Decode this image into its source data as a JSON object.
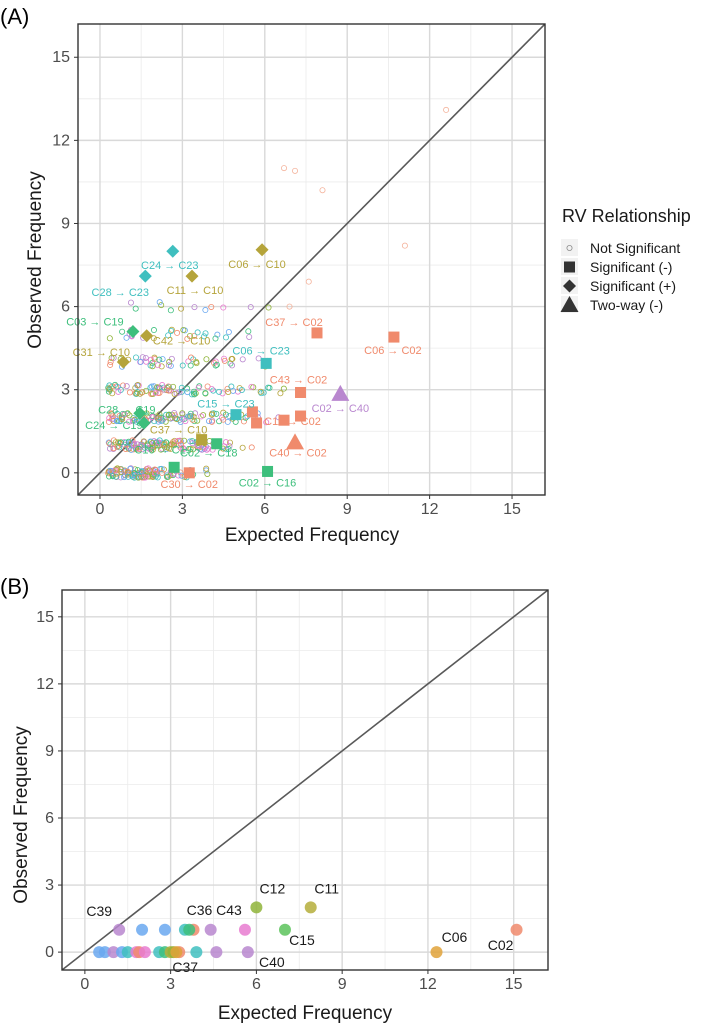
{
  "chart_data": [
    {
      "panel": "(A)",
      "type": "scatter",
      "xlabel": "Expected Frequency",
      "ylabel": "Observed Frequency",
      "xlim": [
        -0.8,
        16.2
      ],
      "ylim": [
        -0.8,
        16.2
      ],
      "xticks": [
        0,
        3,
        6,
        9,
        12,
        15
      ],
      "yticks": [
        0,
        3,
        6,
        9,
        12,
        15
      ],
      "grid": true,
      "reference_line": "y = x",
      "legend": {
        "title": "RV Relationship",
        "placement": "right",
        "entries": [
          {
            "label": "Not Significant",
            "shape": "circle-open"
          },
          {
            "label": "Significant (-)",
            "shape": "square"
          },
          {
            "label": "Significant (+)",
            "shape": "diamond"
          },
          {
            "label": "Two-way (-)",
            "shape": "triangle"
          }
        ]
      },
      "colors": {
        "C02": "#f08a6c",
        "C10": "#b5a43b",
        "C16": "#3dbf7c",
        "C18": "#3dbf7c",
        "C19": "#3dbf7c",
        "C23": "#3fbfbf",
        "C40": "#b987cf"
      },
      "significant_points": [
        {
          "label": "C24 → C23",
          "x": 2.65,
          "y": 8.0,
          "shape": "diamond",
          "group": "C23"
        },
        {
          "label": "C28 → C23",
          "x": 1.65,
          "y": 7.1,
          "shape": "diamond",
          "group": "C23"
        },
        {
          "label": "C06 → C10",
          "x": 5.9,
          "y": 8.05,
          "shape": "diamond",
          "group": "C10"
        },
        {
          "label": "C11 → C10",
          "x": 3.35,
          "y": 7.1,
          "shape": "diamond",
          "group": "C10"
        },
        {
          "label": "C03 → C19",
          "x": 1.2,
          "y": 5.1,
          "shape": "diamond",
          "group": "C19"
        },
        {
          "label": "C42 → C10",
          "x": 1.7,
          "y": 4.95,
          "shape": "diamond",
          "group": "C10"
        },
        {
          "label": "C31 → C10",
          "x": 0.85,
          "y": 4.0,
          "shape": "diamond",
          "group": "C10"
        },
        {
          "label": "C37 → C02",
          "x": 7.9,
          "y": 5.05,
          "shape": "square",
          "group": "C02"
        },
        {
          "label": "C06 → C02",
          "x": 10.7,
          "y": 4.9,
          "shape": "square",
          "group": "C02"
        },
        {
          "label": "C06 → C23",
          "x": 6.05,
          "y": 3.95,
          "shape": "square",
          "group": "C23"
        },
        {
          "label": "C43 → C02",
          "x": 7.3,
          "y": 2.9,
          "shape": "square",
          "group": "C02"
        },
        {
          "label": "C02 → C40",
          "x": 8.75,
          "y": 2.85,
          "shape": "triangle",
          "group": "C40"
        },
        {
          "label": "C28 → C19",
          "x": 1.45,
          "y": 2.15,
          "shape": "diamond",
          "group": "C19"
        },
        {
          "label": "C15 → C23",
          "x": 4.95,
          "y": 2.1,
          "shape": "square",
          "group": "C23"
        },
        {
          "label": "C24 → C19",
          "x": 1.6,
          "y": 1.8,
          "shape": "diamond",
          "group": "C19"
        },
        {
          "label": "C37 → C10",
          "x": 3.7,
          "y": 1.2,
          "shape": "square",
          "group": "C10"
        },
        {
          "label": "C11 → C02",
          "x": 7.3,
          "y": 2.05,
          "shape": "square",
          "group": "C02"
        },
        {
          "label": "C16 → C19",
          "x": 2.7,
          "y": 0.2,
          "shape": "square",
          "group": "C19"
        },
        {
          "label": "C02 → C18",
          "x": 4.25,
          "y": 1.05,
          "shape": "square",
          "group": "C18"
        },
        {
          "label": "C40 → C02",
          "x": 7.1,
          "y": 1.1,
          "shape": "triangle",
          "group": "C02"
        },
        {
          "label": "C30 → C02",
          "x": 3.25,
          "y": 0.0,
          "shape": "square",
          "group": "C02"
        },
        {
          "label": "C02 → C16",
          "x": 6.1,
          "y": 0.05,
          "shape": "square",
          "group": "C16"
        }
      ],
      "unlabeled_significant_points": [
        {
          "x": 5.55,
          "y": 2.2,
          "shape": "square",
          "group": "C02"
        },
        {
          "x": 5.7,
          "y": 1.8,
          "shape": "square",
          "group": "C02"
        },
        {
          "x": 6.7,
          "y": 1.9,
          "shape": "square",
          "group": "C02"
        }
      ],
      "nonsignificant_points_note": "dense cluster of open circles mostly at x 0-8, y 0-6; outliers near (6.7,11), (7.1,10.9), (8.1,10.2), (11.1,8.2), (12.6,13.1)"
    },
    {
      "panel": "(B)",
      "type": "scatter",
      "xlabel": "Expected Frequency",
      "ylabel": "Observed Frequency",
      "xlim": [
        -0.8,
        16.2
      ],
      "ylim": [
        -0.8,
        16.2
      ],
      "xticks": [
        0,
        3,
        6,
        9,
        12,
        15
      ],
      "yticks": [
        0,
        3,
        6,
        9,
        12,
        15
      ],
      "grid": true,
      "reference_line": "y = x",
      "points": [
        {
          "label": "C02",
          "x": 15.1,
          "y": 1.0,
          "color": "#f08a6c"
        },
        {
          "label": "C06",
          "x": 12.3,
          "y": 0.0,
          "color": "#e0a23a"
        },
        {
          "label": "C11",
          "x": 7.9,
          "y": 2.0,
          "color": "#b5ae3b"
        },
        {
          "label": "C12",
          "x": 6.0,
          "y": 2.0,
          "color": "#8fb43a"
        },
        {
          "label": "C15",
          "x": 7.0,
          "y": 1.0,
          "color": "#5cc35c"
        },
        {
          "label": "C43",
          "x": 5.6,
          "y": 1.0,
          "color": "#e87bd0"
        },
        {
          "label": "C36",
          "x": 3.8,
          "y": 1.0,
          "color": "#f08a6c"
        },
        {
          "label": "C39",
          "x": 1.2,
          "y": 1.0,
          "color": "#b987cf"
        },
        {
          "label": "C37",
          "x": 3.3,
          "y": 0.0,
          "color": "#f08a6c"
        },
        {
          "label": "C40",
          "x": 5.7,
          "y": 0.0,
          "color": "#b987cf"
        },
        {
          "label": "",
          "x": 2.0,
          "y": 1.0,
          "color": "#6aa8f0"
        },
        {
          "label": "",
          "x": 2.8,
          "y": 1.0,
          "color": "#6aa8f0"
        },
        {
          "label": "",
          "x": 3.5,
          "y": 1.0,
          "color": "#3fbfbf"
        },
        {
          "label": "",
          "x": 3.65,
          "y": 1.0,
          "color": "#3dbf7c"
        },
        {
          "label": "",
          "x": 4.4,
          "y": 1.0,
          "color": "#b987cf"
        },
        {
          "label": "",
          "x": 0.5,
          "y": 0.0,
          "color": "#6aa8f0"
        },
        {
          "label": "",
          "x": 0.7,
          "y": 0.0,
          "color": "#6aa8f0"
        },
        {
          "label": "",
          "x": 1.0,
          "y": 0.0,
          "color": "#b987cf"
        },
        {
          "label": "",
          "x": 1.3,
          "y": 0.0,
          "color": "#6aa8f0"
        },
        {
          "label": "",
          "x": 1.5,
          "y": 0.0,
          "color": "#3fbfbf"
        },
        {
          "label": "",
          "x": 1.8,
          "y": 0.0,
          "color": "#e87bd0"
        },
        {
          "label": "",
          "x": 1.9,
          "y": 0.0,
          "color": "#f08a6c"
        },
        {
          "label": "",
          "x": 2.1,
          "y": 0.0,
          "color": "#e87bd0"
        },
        {
          "label": "",
          "x": 2.6,
          "y": 0.0,
          "color": "#3fbfbf"
        },
        {
          "label": "",
          "x": 2.8,
          "y": 0.0,
          "color": "#3dbf7c"
        },
        {
          "label": "",
          "x": 3.0,
          "y": 0.0,
          "color": "#b5ae3b"
        },
        {
          "label": "",
          "x": 3.1,
          "y": 0.0,
          "color": "#8fb43a"
        },
        {
          "label": "",
          "x": 3.2,
          "y": 0.0,
          "color": "#e0a23a"
        },
        {
          "label": "",
          "x": 3.9,
          "y": 0.0,
          "color": "#3fbfbf"
        },
        {
          "label": "",
          "x": 4.6,
          "y": 0.0,
          "color": "#b987cf"
        }
      ]
    }
  ]
}
